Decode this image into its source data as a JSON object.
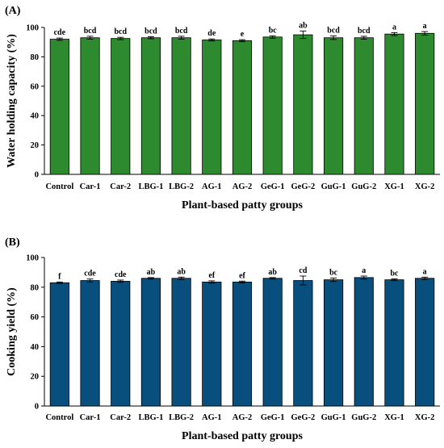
{
  "chart_data": [
    {
      "type": "bar",
      "panel_label": "(A)",
      "categories": [
        "Control",
        "Car-1",
        "Car-2",
        "LBG-1",
        "LBG-2",
        "AG-1",
        "AG-2",
        "GeG-1",
        "GeG-2",
        "GuG-1",
        "GuG-2",
        "XG-1",
        "XG-2"
      ],
      "values": [
        92,
        93,
        92.5,
        93,
        93,
        91.5,
        91,
        93.5,
        95,
        93,
        93,
        95.5,
        96
      ],
      "errors": [
        0.8,
        1.0,
        0.8,
        0.7,
        1.0,
        0.7,
        0.7,
        0.8,
        2.5,
        1.2,
        1.0,
        1.0,
        1.2
      ],
      "significance": [
        "cde",
        "bcd",
        "bcd",
        "bcd",
        "bcd",
        "de",
        "e",
        "bc",
        "ab",
        "bcd",
        "bcd",
        "a",
        "a"
      ],
      "xlabel": "Plant-based patty groups",
      "ylabel": "Water holding capacity (%)",
      "ylim": [
        0,
        100
      ],
      "yticks": [
        0,
        20,
        40,
        60,
        80,
        100
      ],
      "bar_color": "#2e8a2e",
      "grid": false,
      "legend": "none"
    },
    {
      "type": "bar",
      "panel_label": "(B)",
      "categories": [
        "Control",
        "Car-1",
        "Car-2",
        "LBG-1",
        "LBG-2",
        "AG-1",
        "AG-2",
        "GeG-1",
        "GeG-2",
        "GuG-1",
        "GuG-2",
        "XG-1",
        "XG-2"
      ],
      "values": [
        83,
        84.5,
        84,
        86,
        86,
        83.5,
        83.5,
        86,
        84.5,
        85,
        86.5,
        85,
        86
      ],
      "errors": [
        0.5,
        1.0,
        0.8,
        0.5,
        0.8,
        0.8,
        0.6,
        0.5,
        3.0,
        1.2,
        1.0,
        0.6,
        0.8
      ],
      "significance": [
        "f",
        "cde",
        "cde",
        "ab",
        "ab",
        "ef",
        "ef",
        "ab",
        "cd",
        "bc",
        "a",
        "bc",
        "a"
      ],
      "xlabel": "Plant-based patty groups",
      "ylabel": "Cooking yield (%)",
      "ylim": [
        0,
        100
      ],
      "yticks": [
        0,
        20,
        40,
        60,
        80,
        100
      ],
      "bar_color": "#084f7e",
      "grid": false,
      "legend": "none"
    }
  ]
}
